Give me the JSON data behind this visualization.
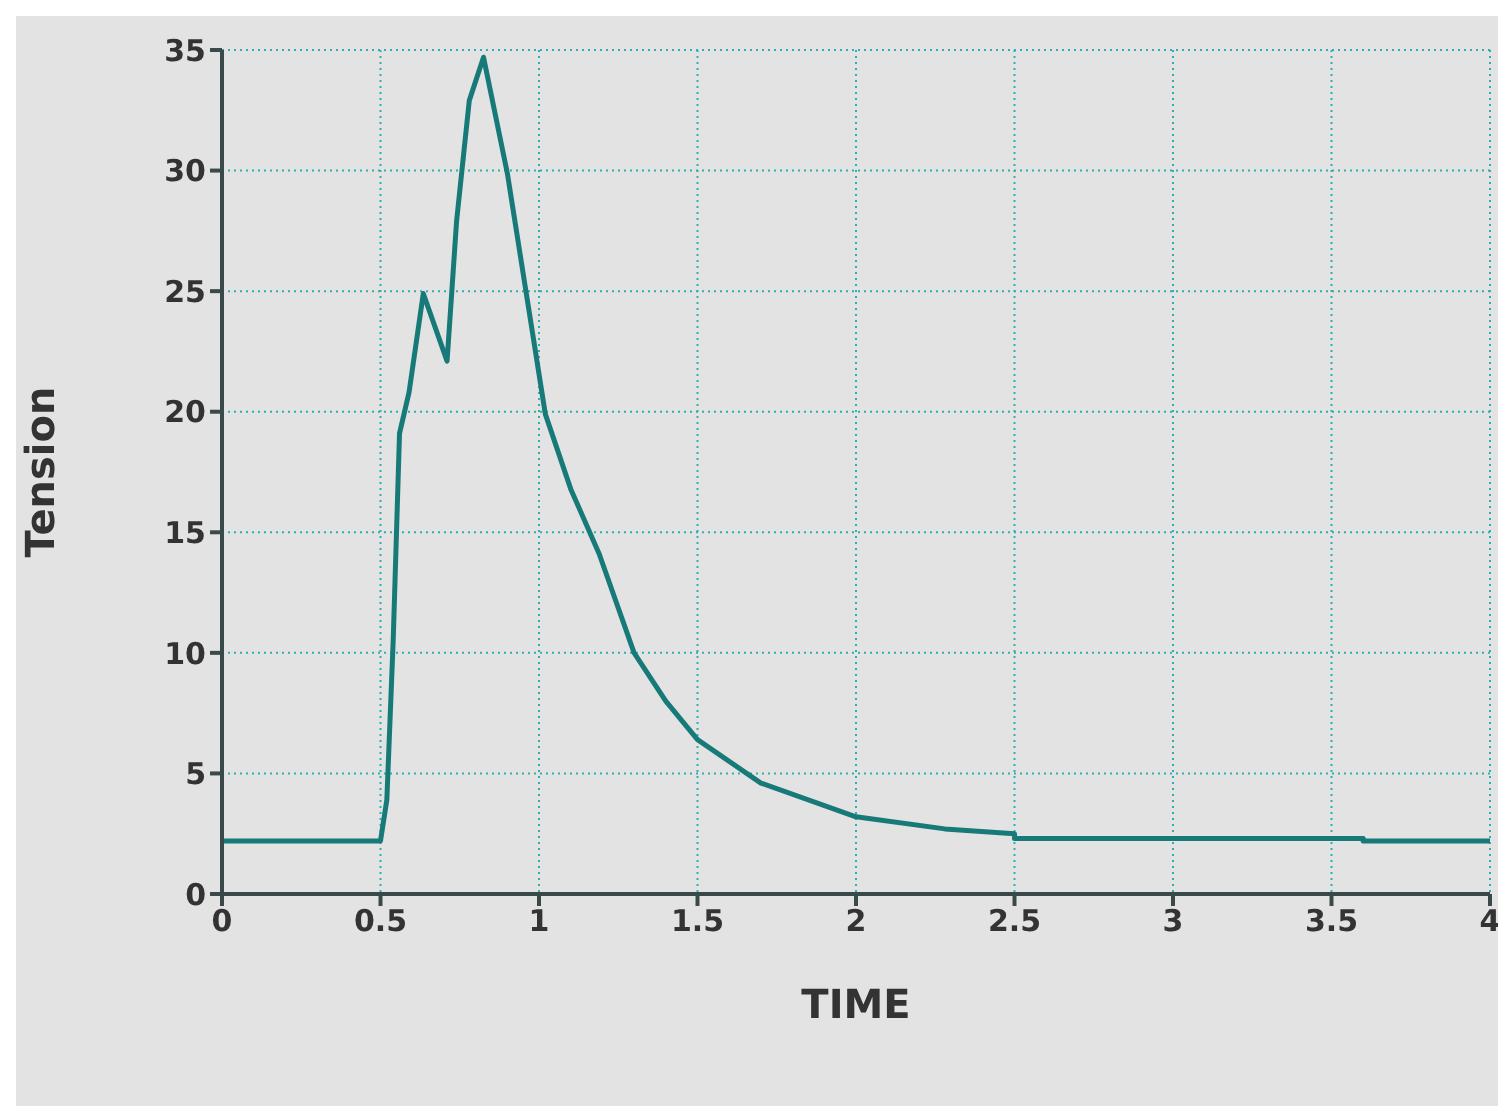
{
  "chart_data": {
    "type": "line",
    "xlabel": "TIME",
    "ylabel": "Tension",
    "series": [
      {
        "color": "#177a78",
        "x": [
          0,
          0.5,
          0.52,
          0.54,
          0.56,
          0.59,
          0.635,
          0.71,
          0.74,
          0.78,
          0.825,
          0.9,
          0.96,
          1.02,
          1.1,
          1.19,
          1.3,
          1.4,
          1.5,
          1.7,
          2.0,
          2.28,
          2.5,
          2.5,
          3.6,
          3.6,
          4
        ],
        "values": [
          2.2,
          2.2,
          3.9,
          10.5,
          19.1,
          20.8,
          24.9,
          22.1,
          27.9,
          32.9,
          34.7,
          29.9,
          24.9,
          19.9,
          16.8,
          14.1,
          10.0,
          8.0,
          6.4,
          4.6,
          3.2,
          2.7,
          2.5,
          2.3,
          2.3,
          2.2,
          2.2
        ]
      }
    ],
    "xlim": [
      0,
      4
    ],
    "xticks": [
      0,
      0.5,
      1,
      1.5,
      2,
      2.5,
      3,
      3.5,
      4
    ],
    "ylim": [
      0,
      35
    ],
    "yticks": [
      0,
      5,
      10,
      15,
      20,
      25,
      30,
      35
    ],
    "grid": true,
    "marker": "none",
    "line_style": "solid"
  }
}
